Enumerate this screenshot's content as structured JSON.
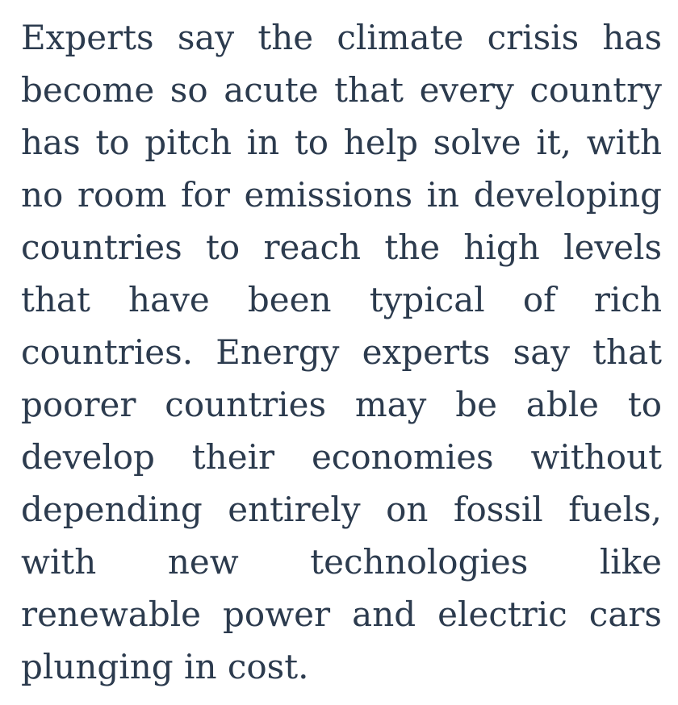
{
  "article": {
    "paragraph": "Experts say the climate crisis has become so acute that every country has to pitch in to help solve it, with no room for emissions in developing countries to reach the high levels that have been typical of rich countries. Energy experts say that poorer countries may be able to develop their economies without depending entirely on fossil fuels, with new technologies like renewable power and electric cars plunging in cost."
  },
  "colors": {
    "text": "#2c3b4e",
    "background": "#ffffff"
  }
}
